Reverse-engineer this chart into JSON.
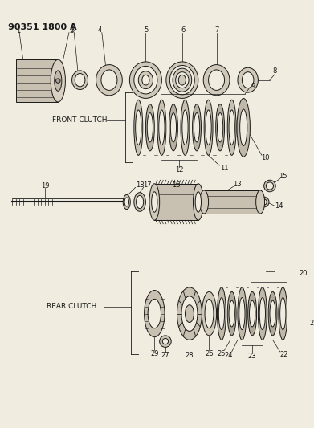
{
  "title": "90351 1800 A",
  "bg_color": "#f0ece0",
  "line_color": "#1a1a1a",
  "text_color": "#1a1a1a",
  "labels": {
    "front_clutch": "FRONT CLUTCH",
    "rear_clutch": "REAR CLUTCH"
  },
  "font_size_title": 8,
  "font_size_label": 6.5,
  "font_size_part": 6
}
